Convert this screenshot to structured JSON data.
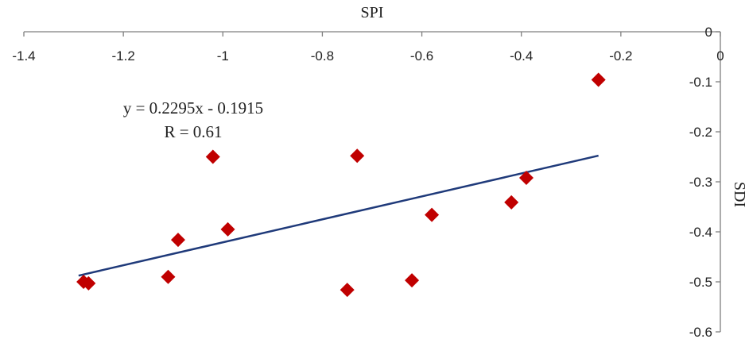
{
  "chart_data": {
    "type": "scatter",
    "title": "",
    "xlabel": "SPI",
    "ylabel": "SDI",
    "xlim": [
      -1.4,
      0
    ],
    "ylim": [
      -0.6,
      0
    ],
    "x_ticks": [
      "-1.4",
      "-1.2",
      "-1",
      "-0.8",
      "-0.6",
      "-0.4",
      "-0.2",
      "0"
    ],
    "y_ticks": [
      "0",
      "-0.1",
      "-0.2",
      "-0.3",
      "-0.4",
      "-0.5",
      "-0.6"
    ],
    "grid": false,
    "x_axis_position": "top",
    "y_axis_position": "right",
    "colors": {
      "points": "#c00000",
      "trendline": "#1f3a7a"
    },
    "series": [
      {
        "marker": "diamond",
        "x": [
          -1.28,
          -1.27,
          -1.11,
          -1.09,
          -1.02,
          -0.99,
          -0.75,
          -0.73,
          -0.62,
          -0.58,
          -0.42,
          -0.39,
          -0.245
        ],
        "y": [
          -0.5,
          -0.503,
          -0.49,
          -0.416,
          -0.25,
          -0.395,
          -0.516,
          -0.248,
          -0.497,
          -0.366,
          -0.341,
          -0.292,
          -0.096
        ]
      }
    ],
    "trendline": {
      "slope": 0.2295,
      "intercept": -0.1915,
      "x_range": [
        -1.29,
        -0.245
      ]
    },
    "annotations": {
      "equation": "y = 0.2295x - 0.1915",
      "r_value": "R = 0.61"
    }
  }
}
